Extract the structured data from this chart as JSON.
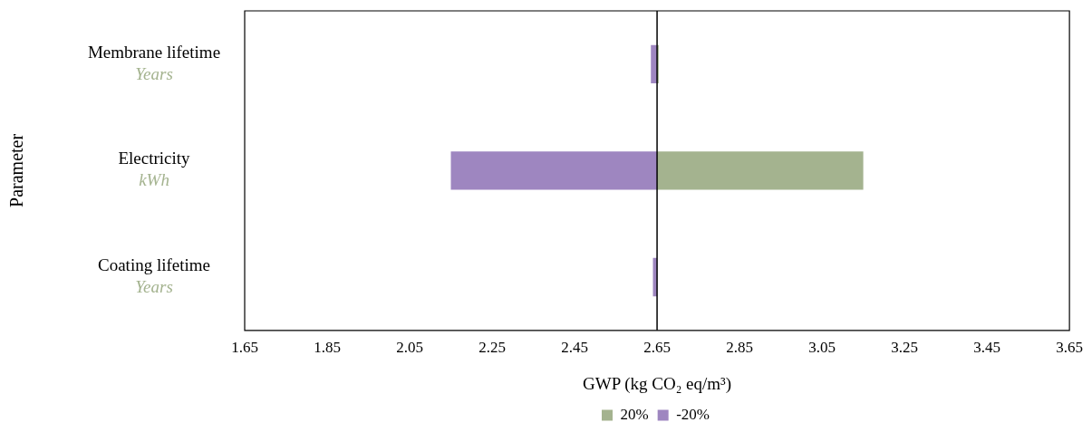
{
  "chart_data": {
    "type": "bar",
    "orientation": "horizontal",
    "categories": [
      "Membrane lifetime\nYears",
      "Electricity\nkWh",
      "Coating lifetime\nYears"
    ],
    "series": [
      {
        "name": "20%",
        "color": "#a4b38f",
        "values": [
          0.004,
          0.5,
          null
        ],
        "base": [
          2.65,
          2.65,
          null
        ]
      },
      {
        "name": "-20%",
        "color": "#9e86c0",
        "values": [
          0.015,
          0.5,
          0.01
        ],
        "base": [
          2.635,
          2.15,
          2.64
        ]
      }
    ],
    "xlim": [
      1.65,
      3.65
    ],
    "xticks": [
      1.65,
      1.85,
      2.05,
      2.25,
      2.45,
      2.65,
      2.85,
      3.05,
      3.25,
      3.45,
      3.65
    ],
    "xlabel": "GWP (kg CO₂ eq/m³)",
    "ylabel": "Parameter",
    "ref_lines": [
      {
        "axis": "x",
        "value": 2.65,
        "color": "#000000"
      }
    ],
    "legend": "bottom",
    "grid": false
  }
}
